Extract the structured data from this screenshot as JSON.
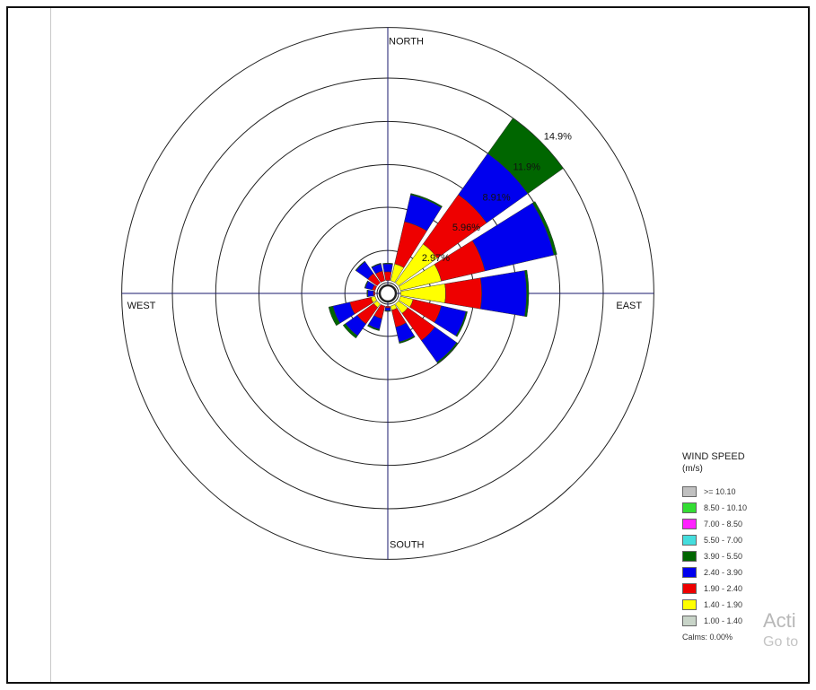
{
  "chart_data": {
    "type": "windrose",
    "direction_labels": {
      "north": "NORTH",
      "east": "EAST",
      "south": "SOUTH",
      "west": "WEST"
    },
    "ring_labels": [
      "2.97%",
      "5.96%",
      "8.91%",
      "11.9%",
      "14.9%"
    ],
    "ring_values": [
      2.97,
      5.96,
      8.91,
      11.9,
      14.9
    ],
    "legend": {
      "title": "WIND SPEED",
      "units": "(m/s)",
      "bins": [
        {
          "label": ">= 10.10",
          "color": "#c0c0c0"
        },
        {
          "label": "8.50 - 10.10",
          "color": "#33dd33"
        },
        {
          "label": "7.00 - 8.50",
          "color": "#ff22ff"
        },
        {
          "label": "5.50 - 7.00",
          "color": "#44dddd"
        },
        {
          "label": "3.90 - 5.50",
          "color": "#006600"
        },
        {
          "label": "2.40 - 3.90",
          "color": "#0000ee"
        },
        {
          "label": "1.90 - 2.40",
          "color": "#ee0000"
        },
        {
          "label": "1.40 - 1.90",
          "color": "#ffff00"
        },
        {
          "label": "1.00 - 1.40",
          "color": "#c8d4c8"
        }
      ],
      "calms": "Calms: 0.00%"
    },
    "petal_bin_order": [
      "1.00 - 1.40",
      "1.40 - 1.90",
      "1.90 - 2.40",
      "2.40 - 3.90",
      "3.90 - 5.50"
    ],
    "directions": [
      {
        "dir": "N",
        "deg": 0,
        "cum": [
          0.4,
          0.9,
          1.5,
          2.05,
          2.1
        ]
      },
      {
        "dir": "NNE",
        "deg": 22.5,
        "cum": [
          0.5,
          2.1,
          5.1,
          7.0,
          7.1
        ]
      },
      {
        "dir": "NE",
        "deg": 45,
        "cum": [
          0.5,
          4.2,
          8.4,
          11.9,
          14.9
        ]
      },
      {
        "dir": "ENE",
        "deg": 67.5,
        "cum": [
          0.5,
          3.8,
          6.9,
          11.8,
          12.0
        ]
      },
      {
        "dir": "E",
        "deg": 90,
        "cum": [
          0.5,
          4.0,
          6.5,
          9.6,
          9.75
        ]
      },
      {
        "dir": "ESE",
        "deg": 112.5,
        "cum": [
          0.4,
          1.8,
          3.8,
          5.55,
          5.65
        ]
      },
      {
        "dir": "SE",
        "deg": 135,
        "cum": [
          0.4,
          1.7,
          4.0,
          5.85,
          5.95
        ]
      },
      {
        "dir": "SSE",
        "deg": 157.5,
        "cum": [
          0.3,
          1.2,
          2.4,
          3.45,
          3.55
        ]
      },
      {
        "dir": "S",
        "deg": 180,
        "cum": [
          0.2,
          0.7,
          1.0,
          1.2,
          1.25
        ]
      },
      {
        "dir": "SSW",
        "deg": 202.5,
        "cum": [
          0.2,
          0.8,
          1.8,
          2.55,
          2.65
        ]
      },
      {
        "dir": "SW",
        "deg": 225,
        "cum": [
          0.3,
          1.2,
          2.6,
          3.6,
          3.8
        ]
      },
      {
        "dir": "WSW",
        "deg": 247.5,
        "cum": [
          0.3,
          1.2,
          2.7,
          3.9,
          4.2
        ]
      },
      {
        "dir": "W",
        "deg": 270,
        "cum": [
          0.3,
          0.6,
          1.0,
          1.4,
          1.45
        ]
      },
      {
        "dir": "WNW",
        "deg": 292.5,
        "cum": [
          0.3,
          0.6,
          1.1,
          1.6,
          1.65
        ]
      },
      {
        "dir": "NW",
        "deg": 315,
        "cum": [
          0.3,
          0.7,
          1.7,
          2.7,
          2.75
        ]
      },
      {
        "dir": "NNW",
        "deg": 337.5,
        "cum": [
          0.3,
          0.8,
          1.6,
          2.1,
          2.15
        ]
      }
    ],
    "max_ring_value": 14.9,
    "outer_ring_value": 18.4
  },
  "watermark": {
    "line1": "Acti",
    "line2": "Go to"
  }
}
